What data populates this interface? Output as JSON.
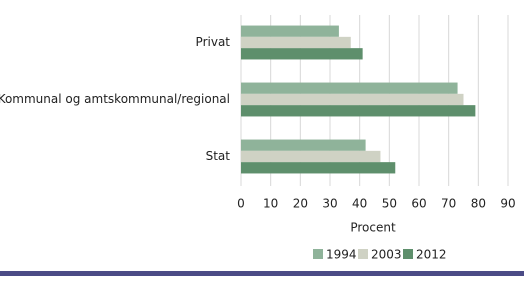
{
  "chart_data": {
    "type": "hbar",
    "categories": [
      "Privat",
      "Kommunal og amtskommunal/regional",
      "Stat"
    ],
    "series": [
      {
        "name": "1994",
        "color": "#8fb39a",
        "values": [
          33,
          73,
          42
        ]
      },
      {
        "name": "2003",
        "color": "#cfd2c4",
        "values": [
          37,
          75,
          47
        ]
      },
      {
        "name": "2012",
        "color": "#5e8f6c",
        "values": [
          41,
          79,
          52
        ]
      }
    ],
    "xlabel": "Procent",
    "xlim": [
      0,
      90
    ],
    "xticks": [
      0,
      10,
      20,
      30,
      40,
      50,
      60,
      70,
      80,
      90
    ],
    "grid": true
  }
}
